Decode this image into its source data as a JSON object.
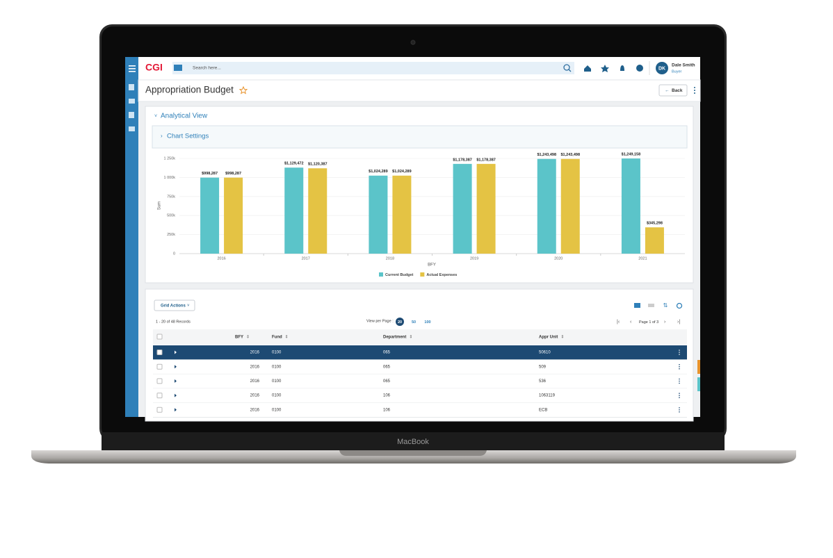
{
  "header": {
    "logo": "CGI",
    "search_placeholder": "Search here...",
    "user_initials": "DK",
    "user_name": "Dale Smith",
    "user_role": "Buyer"
  },
  "page": {
    "title": "Appropriation Budget",
    "back": "Back",
    "section": "Analytical View",
    "settings": "Chart Settings"
  },
  "chart_data": {
    "type": "bar",
    "y_label": "Sum",
    "x_label": "BFY",
    "categories": [
      "2016",
      "2017",
      "2018",
      "2019",
      "2020",
      "2021"
    ],
    "series": [
      {
        "name": "Current Budget",
        "color": "#5bc4c9",
        "values": [
          998287,
          1129472,
          1024289,
          1178387,
          1243498,
          1249158
        ],
        "value_labels": [
          "$998,287",
          "$1,129,472",
          "$1,024,289",
          "$1,178,387",
          "$1,243,498",
          "$1,249,158"
        ]
      },
      {
        "name": "Actual Expenses",
        "color": "#e4c344",
        "values": [
          998287,
          1120387,
          1024289,
          1178387,
          1243498,
          345298
        ],
        "value_labels": [
          "$998,287",
          "$1,120,387",
          "$1,024,289",
          "$1,178,387",
          "$1,243,498",
          "$345,298"
        ]
      }
    ],
    "ylim": [
      0,
      1250000
    ],
    "yticks": [
      0,
      {
        "value": 250000,
        "label": "250k"
      },
      {
        "value": 500000,
        "label": "500k"
      },
      {
        "value": 750000,
        "label": "750k"
      },
      {
        "value": 1000000,
        "label": "1 000k"
      },
      {
        "value": 1250000,
        "label": "1 250k"
      }
    ],
    "grid": true,
    "legend": "bottom"
  },
  "grid": {
    "actions": "Grid Actions",
    "records": "1 - 20 of 48 Records",
    "view_per_page": "View per Page :",
    "page_sizes": [
      "20",
      "50",
      "100"
    ],
    "page_info": "Page 1 of 3",
    "columns": [
      "BFY",
      "Fund",
      "Department",
      "Appr Unit"
    ],
    "rows": [
      [
        "2016",
        "0100",
        "065",
        "50610"
      ],
      [
        "2016",
        "0100",
        "065",
        "509"
      ],
      [
        "2016",
        "0100",
        "065",
        "536"
      ],
      [
        "2016",
        "0100",
        "106",
        "1063119"
      ],
      [
        "2016",
        "0100",
        "106",
        "ECB"
      ]
    ]
  },
  "device": {
    "label": "MacBook"
  }
}
